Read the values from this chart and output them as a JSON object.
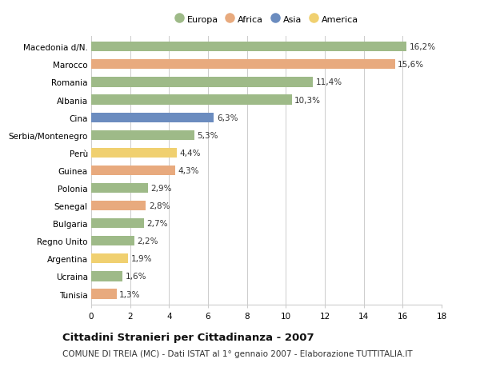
{
  "categories": [
    "Macedonia d/N.",
    "Marocco",
    "Romania",
    "Albania",
    "Cina",
    "Serbia/Montenegro",
    "Perù",
    "Guinea",
    "Polonia",
    "Senegal",
    "Bulgaria",
    "Regno Unito",
    "Argentina",
    "Ucraina",
    "Tunisia"
  ],
  "values": [
    16.2,
    15.6,
    11.4,
    10.3,
    6.3,
    5.3,
    4.4,
    4.3,
    2.9,
    2.8,
    2.7,
    2.2,
    1.9,
    1.6,
    1.3
  ],
  "labels": [
    "16,2%",
    "15,6%",
    "11,4%",
    "10,3%",
    "6,3%",
    "5,3%",
    "4,4%",
    "4,3%",
    "2,9%",
    "2,8%",
    "2,7%",
    "2,2%",
    "1,9%",
    "1,6%",
    "1,3%"
  ],
  "continents": [
    "Europa",
    "Africa",
    "Europa",
    "Europa",
    "Asia",
    "Europa",
    "America",
    "Africa",
    "Europa",
    "Africa",
    "Europa",
    "Europa",
    "America",
    "Europa",
    "Africa"
  ],
  "continent_colors": {
    "Europa": "#9eba88",
    "Africa": "#e8aa7e",
    "Asia": "#6b8cbf",
    "America": "#f0d070"
  },
  "legend_order": [
    "Europa",
    "Africa",
    "Asia",
    "America"
  ],
  "title": "Cittadini Stranieri per Cittadinanza - 2007",
  "subtitle": "COMUNE DI TREIA (MC) - Dati ISTAT al 1° gennaio 2007 - Elaborazione TUTTITALIA.IT",
  "xlim": [
    0,
    18
  ],
  "xticks": [
    0,
    2,
    4,
    6,
    8,
    10,
    12,
    14,
    16,
    18
  ],
  "bg_color": "#ffffff",
  "grid_color": "#cccccc",
  "bar_height": 0.55,
  "label_fontsize": 7.5,
  "tick_fontsize": 7.5,
  "title_fontsize": 9.5,
  "subtitle_fontsize": 7.5
}
